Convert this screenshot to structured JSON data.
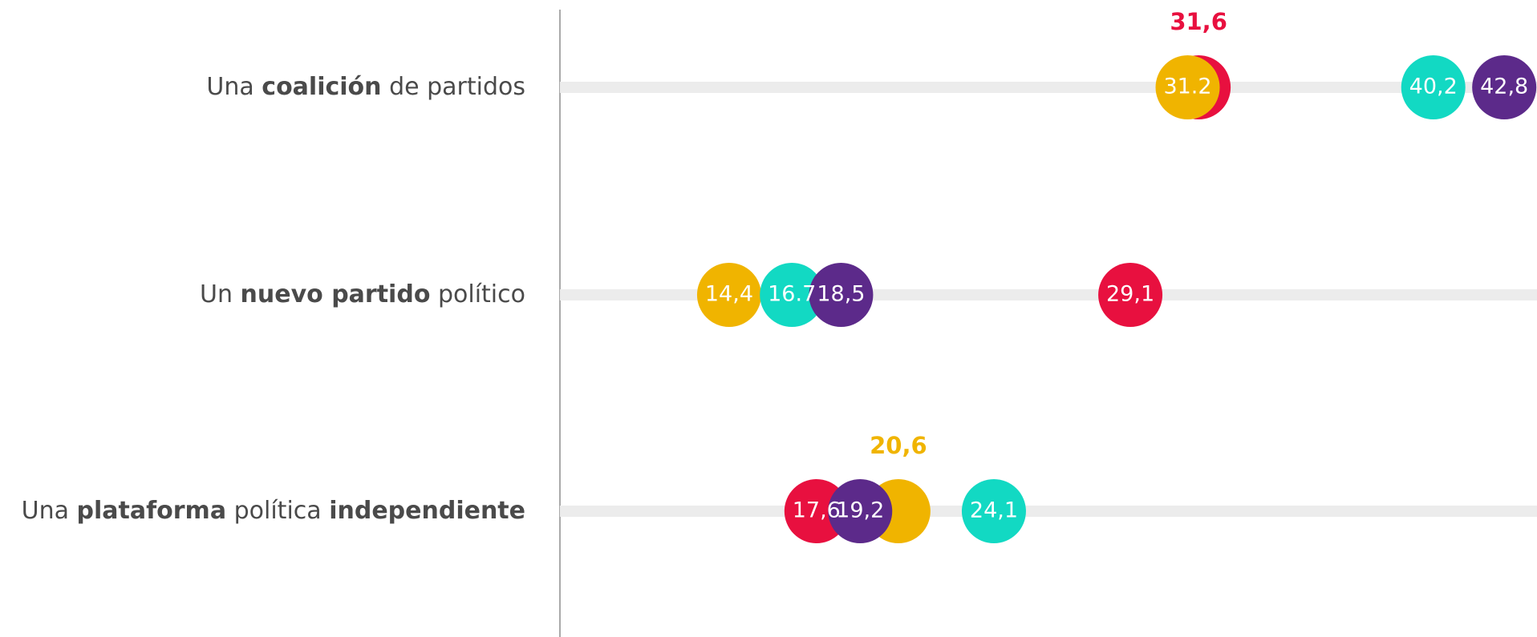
{
  "chart_data": {
    "type": "dot",
    "categories": [
      [
        "Una ",
        "coalición",
        " de partidos"
      ],
      [
        "Un ",
        "nuevo partido",
        " político"
      ],
      [
        "Una ",
        "plataforma",
        " política ",
        "independiente"
      ]
    ],
    "xlim": [
      8.2,
      44
    ],
    "series": [
      {
        "color": "#e8103f",
        "values": [
          31.6,
          29.1,
          17.6
        ],
        "value_labels": [
          "31,6",
          "29,1",
          "17,6"
        ]
      },
      {
        "color": "#f0b400",
        "values": [
          31.2,
          14.4,
          20.6
        ],
        "value_labels": [
          "31.2",
          "14,4",
          "20,6"
        ]
      },
      {
        "color": "#12d9c3",
        "values": [
          40.2,
          16.7,
          24.1
        ],
        "value_labels": [
          "40,2",
          "16.7",
          "24,1"
        ]
      },
      {
        "color": "#5c2a8a",
        "values": [
          42.8,
          18.5,
          19.2
        ],
        "value_labels": [
          "42,8",
          "18,5",
          "19,2"
        ]
      }
    ]
  }
}
